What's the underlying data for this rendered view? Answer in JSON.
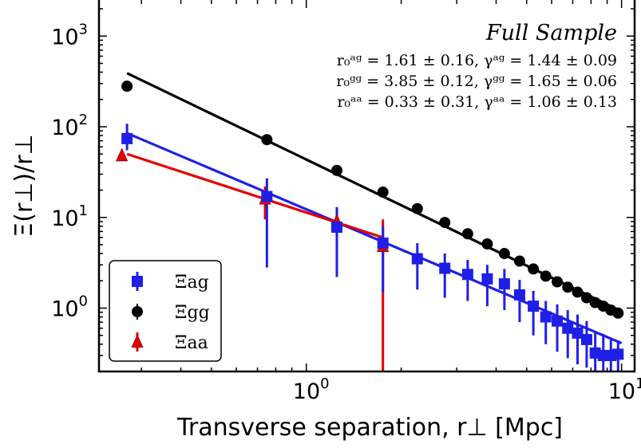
{
  "chart_data": {
    "type": "scatter",
    "title": "",
    "xlabel": "Transverse separation, r⊥ [Mpc]",
    "ylabel": "Ξ(r⊥)/r⊥",
    "xscale": "log",
    "yscale": "log",
    "xlim": [
      0.22,
      11.0
    ],
    "ylim": [
      0.2,
      2500
    ],
    "x_tick_labels": [
      {
        "value": 1,
        "label": "10",
        "exp": "0"
      },
      {
        "value": 10,
        "label": "10",
        "exp": "1"
      }
    ],
    "y_tick_labels": [
      {
        "value": 1,
        "label": "10",
        "exp": "0"
      },
      {
        "value": 10,
        "label": "10",
        "exp": "1"
      },
      {
        "value": 100,
        "label": "10",
        "exp": "2"
      },
      {
        "value": 1000,
        "label": "10",
        "exp": "3"
      }
    ],
    "annotation": {
      "title": "Full Sample",
      "lines": [
        "r₀ᵃᵍ = 1.61 ± 0.16, γᵃᵍ = 1.44 ± 0.09",
        "r₀ᵍᵍ = 3.85 ± 0.12, γᵍᵍ = 1.65 ± 0.06",
        "r₀ᵃᵃ = 0.33 ± 0.31, γᵃᵃ = 1.06 ± 0.13"
      ]
    },
    "legend": {
      "position": "bottom-left",
      "entries": [
        {
          "label": "Ξag",
          "series": "ag"
        },
        {
          "label": "Ξgg",
          "series": "gg"
        },
        {
          "label": "Ξaa",
          "series": "aa"
        }
      ]
    },
    "series": [
      {
        "name": "Ξag",
        "key": "ag",
        "color": "#1f1fe6",
        "marker": "square",
        "points": [
          {
            "x": 0.27,
            "y": 74,
            "lo": 55,
            "hi": 108
          },
          {
            "x": 0.75,
            "y": 17,
            "lo": 2.8,
            "hi": 27
          },
          {
            "x": 1.25,
            "y": 7.8,
            "lo": 2.2,
            "hi": 13
          },
          {
            "x": 1.75,
            "y": 5.2,
            "lo": 1.5,
            "hi": 8.0
          },
          {
            "x": 2.25,
            "y": 3.5,
            "lo": 1.6,
            "hi": 5.2
          },
          {
            "x": 2.75,
            "y": 2.75,
            "lo": 1.3,
            "hi": 4.0
          },
          {
            "x": 3.25,
            "y": 2.35,
            "lo": 1.2,
            "hi": 3.4
          },
          {
            "x": 3.75,
            "y": 2.1,
            "lo": 1.05,
            "hi": 3.0
          },
          {
            "x": 4.25,
            "y": 1.85,
            "lo": 0.95,
            "hi": 2.7
          },
          {
            "x": 4.75,
            "y": 1.4,
            "lo": 0.7,
            "hi": 2.05
          },
          {
            "x": 5.25,
            "y": 1.05,
            "lo": 0.5,
            "hi": 1.55
          },
          {
            "x": 5.75,
            "y": 0.8,
            "lo": 0.4,
            "hi": 1.2
          },
          {
            "x": 6.25,
            "y": 0.72,
            "lo": 0.33,
            "hi": 1.1
          },
          {
            "x": 6.75,
            "y": 0.6,
            "lo": 0.28,
            "hi": 0.95
          },
          {
            "x": 7.25,
            "y": 0.53,
            "lo": 0.24,
            "hi": 0.85
          },
          {
            "x": 7.75,
            "y": 0.45,
            "lo": 0.22,
            "hi": 0.72
          },
          {
            "x": 8.25,
            "y": 0.32,
            "lo": 0.2,
            "hi": 0.55
          },
          {
            "x": 8.75,
            "y": 0.3,
            "lo": 0.2,
            "hi": 0.52
          },
          {
            "x": 9.25,
            "y": 0.3,
            "lo": 0.2,
            "hi": 0.45
          },
          {
            "x": 9.75,
            "y": 0.31,
            "lo": 0.2,
            "hi": 0.44
          }
        ]
      },
      {
        "name": "Ξgg",
        "key": "gg",
        "color": "#000000",
        "marker": "circle",
        "points": [
          {
            "x": 0.27,
            "y": 280
          },
          {
            "x": 0.75,
            "y": 72
          },
          {
            "x": 1.25,
            "y": 33
          },
          {
            "x": 1.75,
            "y": 19
          },
          {
            "x": 2.25,
            "y": 12.5
          },
          {
            "x": 2.75,
            "y": 8.8
          },
          {
            "x": 3.25,
            "y": 6.6
          },
          {
            "x": 3.75,
            "y": 5.1
          },
          {
            "x": 4.25,
            "y": 4.0
          },
          {
            "x": 4.75,
            "y": 3.3
          },
          {
            "x": 5.25,
            "y": 2.7
          },
          {
            "x": 5.75,
            "y": 2.25
          },
          {
            "x": 6.25,
            "y": 1.95
          },
          {
            "x": 6.75,
            "y": 1.7
          },
          {
            "x": 7.25,
            "y": 1.5
          },
          {
            "x": 7.75,
            "y": 1.3
          },
          {
            "x": 8.25,
            "y": 1.15
          },
          {
            "x": 8.75,
            "y": 1.05
          },
          {
            "x": 9.25,
            "y": 0.95
          },
          {
            "x": 9.75,
            "y": 0.88
          }
        ]
      },
      {
        "name": "Ξaa",
        "key": "aa",
        "color": "#e60000",
        "marker": "triangle",
        "points": [
          {
            "x": 0.26,
            "y": 48,
            "lo": 43,
            "hi": 54
          },
          {
            "x": 0.74,
            "y": 16,
            "lo": 9.5,
            "hi": 22
          },
          {
            "x": 1.25,
            "y": 9.0,
            "lo": 5.5,
            "hi": 12.5
          },
          {
            "x": 1.75,
            "y": 4.8,
            "lo": 0.2,
            "hi": 9.5
          }
        ]
      }
    ],
    "fits": [
      {
        "series": "gg",
        "color": "#000000",
        "x": [
          0.27,
          10.0
        ],
        "y": [
          390,
          0.92
        ]
      },
      {
        "series": "ag",
        "color": "#1f1fe6",
        "x": [
          0.27,
          10.0
        ],
        "y": [
          85,
          0.41
        ]
      },
      {
        "series": "aa",
        "color": "#e60000",
        "x": [
          0.27,
          1.75
        ],
        "y": [
          50,
          6.0
        ]
      }
    ]
  }
}
